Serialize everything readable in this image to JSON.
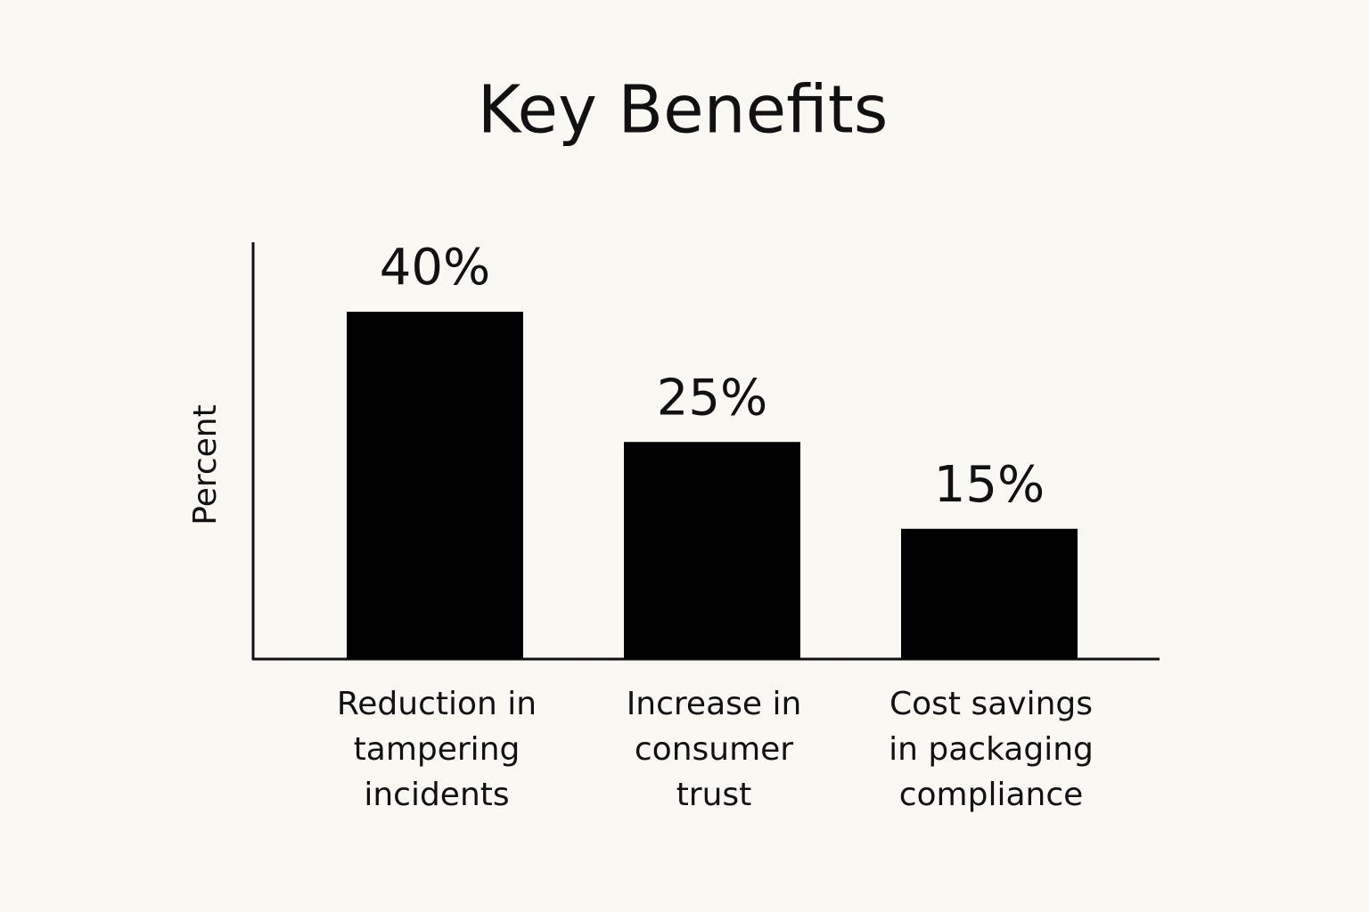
{
  "chart_data": {
    "type": "bar",
    "title": "Key Benefits",
    "y_label": "Percent",
    "categories": [
      [
        "Reduction in",
        "tampering",
        "incidents"
      ],
      [
        "Increase in",
        "consumer",
        "trust"
      ],
      [
        "Cost savings",
        "in packaging",
        "compliance"
      ]
    ],
    "values": [
      40,
      25,
      15
    ],
    "value_labels": [
      "40%",
      "25%",
      "15%"
    ],
    "color": "#000000",
    "ylim": [
      0,
      48
    ]
  }
}
